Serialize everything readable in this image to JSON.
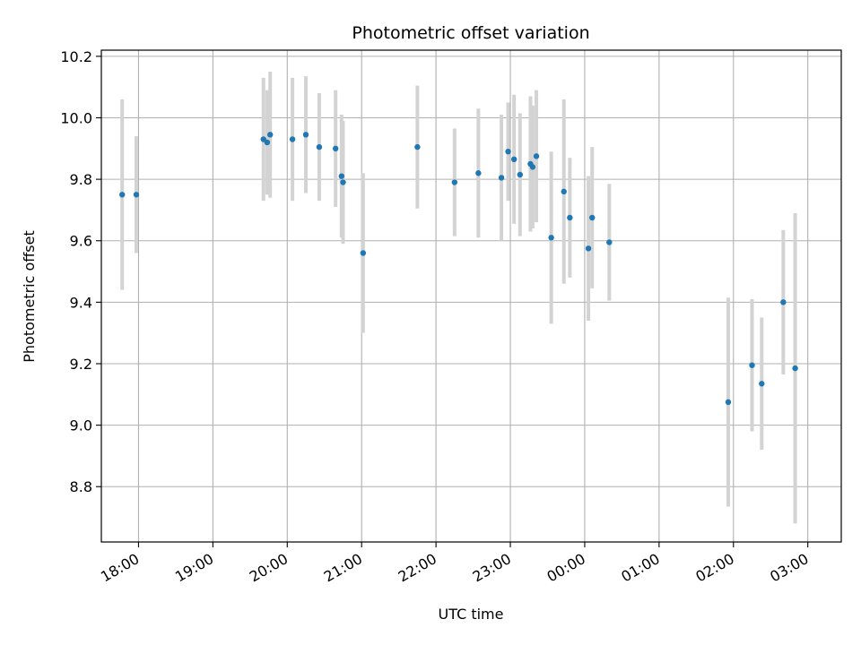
{
  "chart_data": {
    "type": "scatter",
    "title": "Photometric offset variation",
    "xlabel": "UTC time",
    "ylabel": "Photometric offset",
    "x_tick_labels": [
      "18:00",
      "19:00",
      "20:00",
      "21:00",
      "22:00",
      "23:00",
      "00:00",
      "01:00",
      "02:00",
      "03:00"
    ],
    "y_ticks": [
      8.8,
      9.0,
      9.2,
      9.4,
      9.6,
      9.8,
      10.0,
      10.2
    ],
    "ylim": [
      8.62,
      10.22
    ],
    "xlim_hours": [
      17.5,
      27.45
    ],
    "grid": true,
    "colors": {
      "point": "#1f77b4",
      "errorbar": "#d3d3d3",
      "grid": "#b0b0b0"
    },
    "points": [
      {
        "t": 17.78,
        "y": 9.75,
        "err": 0.31
      },
      {
        "t": 17.97,
        "y": 9.75,
        "err": 0.19
      },
      {
        "t": 19.68,
        "y": 9.93,
        "err": 0.2
      },
      {
        "t": 19.73,
        "y": 9.92,
        "err": 0.17
      },
      {
        "t": 19.77,
        "y": 9.945,
        "err": 0.205
      },
      {
        "t": 20.07,
        "y": 9.93,
        "err": 0.2
      },
      {
        "t": 20.25,
        "y": 9.945,
        "err": 0.19
      },
      {
        "t": 20.43,
        "y": 9.905,
        "err": 0.175
      },
      {
        "t": 20.65,
        "y": 9.9,
        "err": 0.19
      },
      {
        "t": 20.73,
        "y": 9.81,
        "err": 0.2
      },
      {
        "t": 20.75,
        "y": 9.79,
        "err": 0.2
      },
      {
        "t": 21.02,
        "y": 9.56,
        "err": 0.26
      },
      {
        "t": 21.75,
        "y": 9.905,
        "err": 0.2
      },
      {
        "t": 22.25,
        "y": 9.79,
        "err": 0.175
      },
      {
        "t": 22.57,
        "y": 9.82,
        "err": 0.21
      },
      {
        "t": 22.88,
        "y": 9.805,
        "err": 0.205
      },
      {
        "t": 22.97,
        "y": 9.89,
        "err": 0.16
      },
      {
        "t": 23.05,
        "y": 9.865,
        "err": 0.21
      },
      {
        "t": 23.13,
        "y": 9.815,
        "err": 0.2
      },
      {
        "t": 23.27,
        "y": 9.85,
        "err": 0.22
      },
      {
        "t": 23.3,
        "y": 9.84,
        "err": 0.2
      },
      {
        "t": 23.35,
        "y": 9.875,
        "err": 0.215
      },
      {
        "t": 23.55,
        "y": 9.61,
        "err": 0.28
      },
      {
        "t": 23.72,
        "y": 9.76,
        "err": 0.3
      },
      {
        "t": 23.8,
        "y": 9.675,
        "err": 0.195
      },
      {
        "t": 24.05,
        "y": 9.575,
        "err": 0.235
      },
      {
        "t": 24.1,
        "y": 9.675,
        "err": 0.23
      },
      {
        "t": 24.33,
        "y": 9.595,
        "err": 0.19
      },
      {
        "t": 25.93,
        "y": 9.075,
        "err": 0.34
      },
      {
        "t": 26.25,
        "y": 9.195,
        "err": 0.215
      },
      {
        "t": 26.38,
        "y": 9.135,
        "err": 0.215
      },
      {
        "t": 26.67,
        "y": 9.4,
        "err": 0.235
      },
      {
        "t": 26.83,
        "y": 9.185,
        "err": 0.505
      }
    ]
  }
}
